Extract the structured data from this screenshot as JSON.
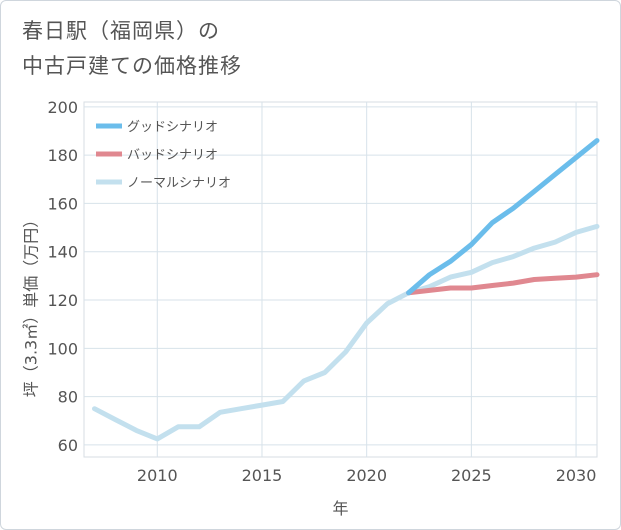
{
  "title": {
    "line1": "春日駅（福岡県）の",
    "line2": "中古戸建ての価格推移"
  },
  "chart_data": {
    "type": "line",
    "title": "春日駅（福岡県）の中古戸建ての価格推移",
    "xlabel": "年",
    "ylabel": "坪（3.3㎡）単価（万円）",
    "xlim": [
      2006.5,
      2031
    ],
    "ylim": [
      55,
      202
    ],
    "xticks": [
      2010,
      2015,
      2020,
      2025,
      2030
    ],
    "yticks": [
      60,
      80,
      100,
      120,
      140,
      160,
      180,
      200
    ],
    "grid": true,
    "legend_position": "top-left",
    "series": [
      {
        "name": "グッドシナリオ",
        "color": "#6bbdeb",
        "x": [
          2022,
          2023,
          2024,
          2025,
          2026,
          2027,
          2028,
          2029,
          2030,
          2031
        ],
        "values": [
          123,
          130.5,
          136,
          143,
          152,
          158,
          165,
          172,
          179,
          186
        ]
      },
      {
        "name": "バッドシナリオ",
        "color": "#e08890",
        "x": [
          2022,
          2023,
          2024,
          2025,
          2026,
          2027,
          2028,
          2029,
          2030,
          2031
        ],
        "values": [
          123,
          124,
          125,
          125,
          126,
          127,
          128.5,
          129,
          129.5,
          130.5
        ]
      },
      {
        "name": "ノーマルシナリオ",
        "color": "#c3e0ee",
        "x": [
          2007,
          2008,
          2009,
          2010,
          2011,
          2012,
          2013,
          2014,
          2015,
          2016,
          2017,
          2018,
          2019,
          2020,
          2021,
          2022,
          2023,
          2024,
          2025,
          2026,
          2027,
          2028,
          2029,
          2030,
          2031
        ],
        "values": [
          75,
          70.5,
          66,
          62.5,
          67.5,
          67.5,
          73.5,
          75,
          76.5,
          78,
          86.5,
          90,
          98.5,
          110.5,
          118.5,
          123,
          125.5,
          129.5,
          131.5,
          135.5,
          138,
          141.5,
          144,
          148,
          150.5
        ]
      }
    ]
  }
}
